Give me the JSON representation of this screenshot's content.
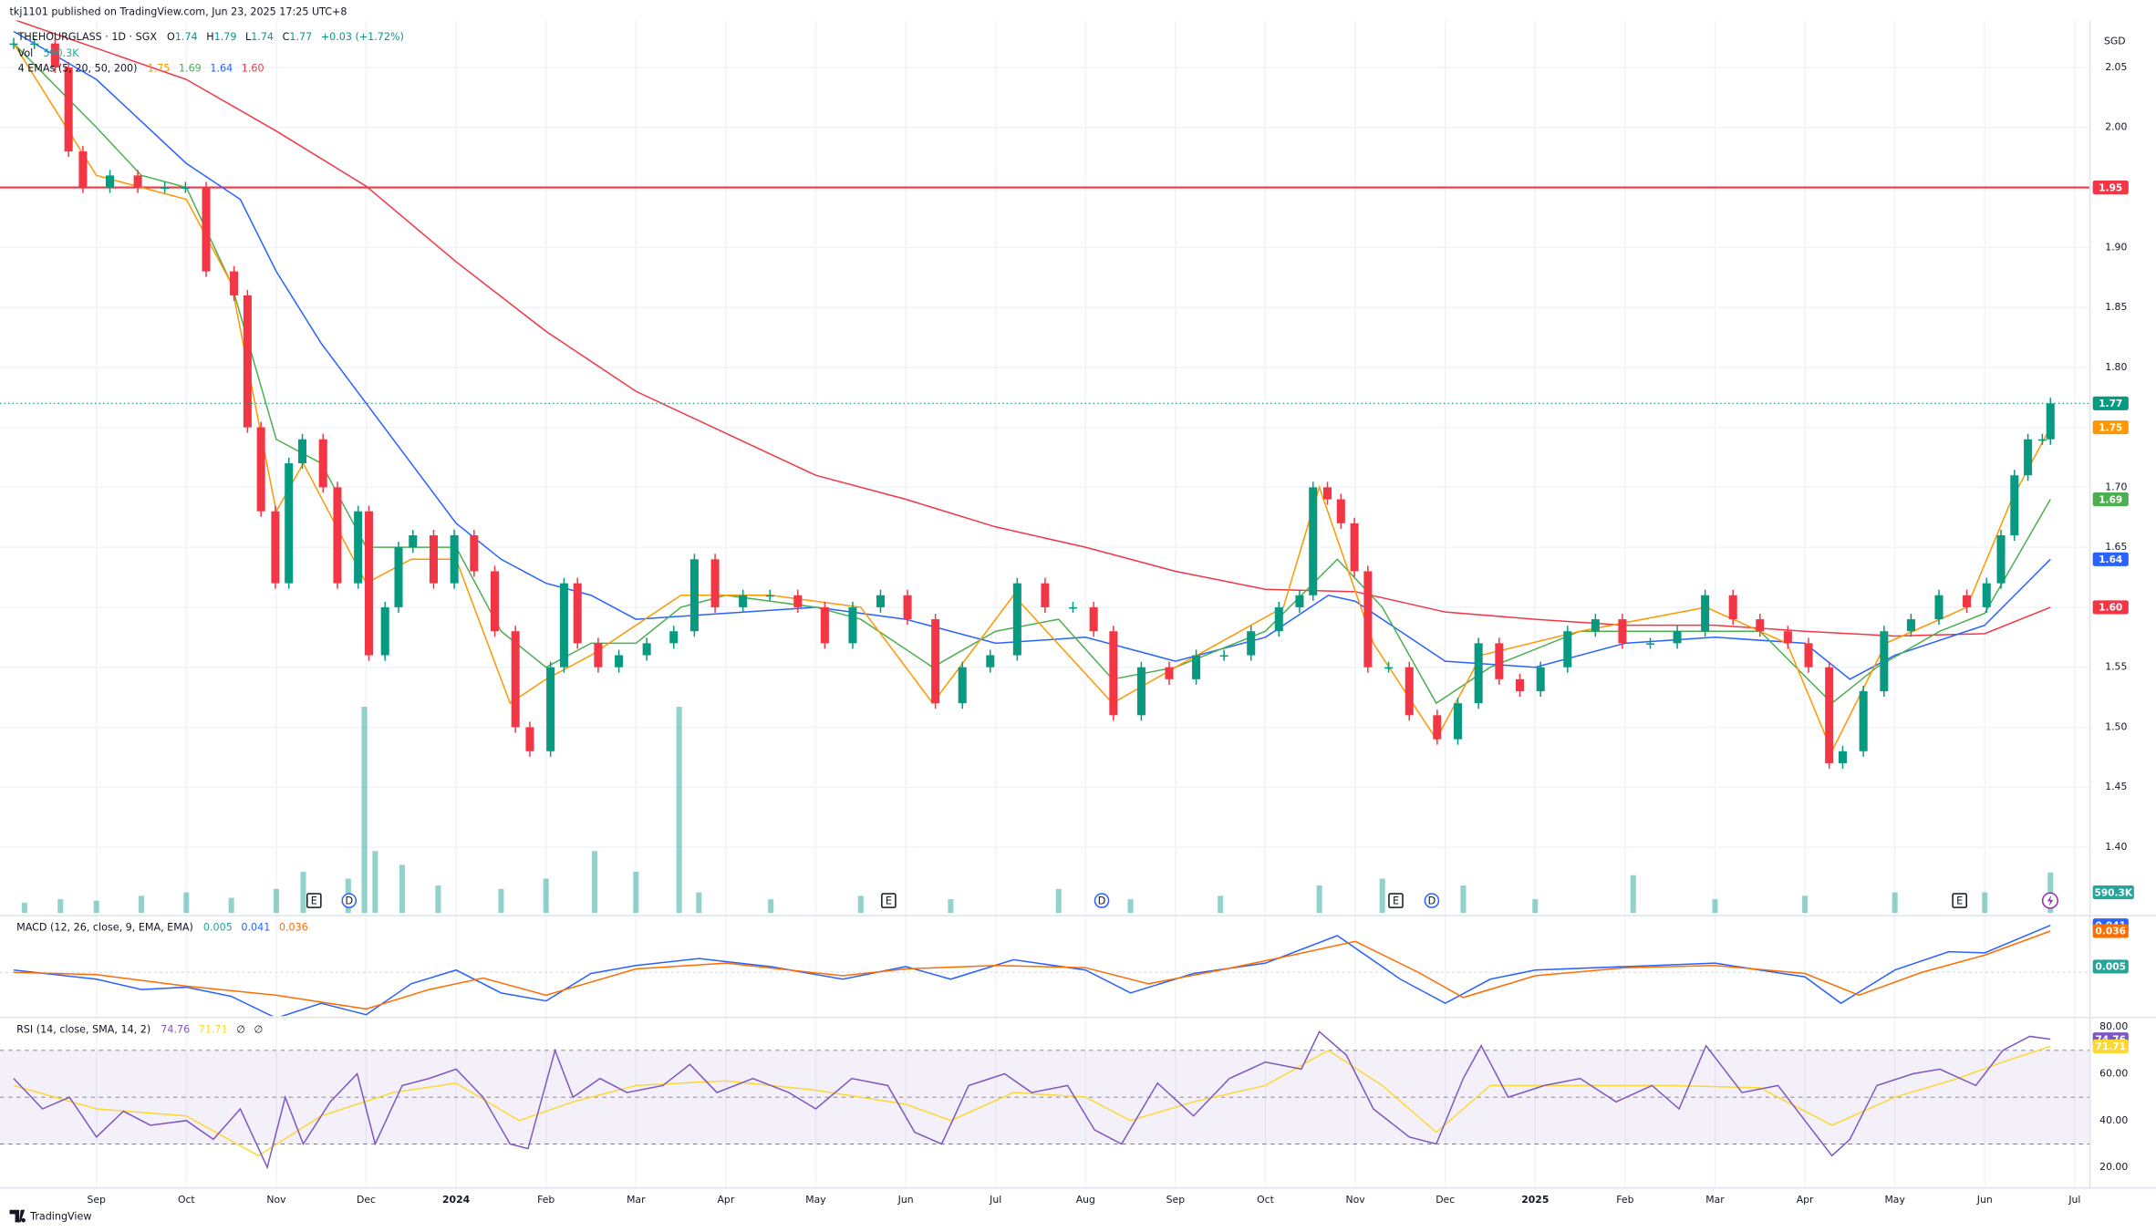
{
  "header": {
    "published": "tkj1101 published on TradingView.com, Jun 23, 2025 17:25 UTC+8"
  },
  "footer": {
    "brand": "TradingView"
  },
  "chart_data": {
    "type": "candlestick",
    "symbol": "THEHOURGLASS · 1D · SGX",
    "ohlc": [
      {
        "key": "O",
        "value": "1.74"
      },
      {
        "key": "H",
        "value": "1.79"
      },
      {
        "key": "L",
        "value": "1.74"
      },
      {
        "key": "C",
        "value": "1.77"
      }
    ],
    "change": "+0.03 (+1.72%)",
    "currency": "SGD",
    "grid": true,
    "xlim": [
      -0.95,
      22.17
    ],
    "xticks": [
      {
        "value": 0,
        "label": "Sep"
      },
      {
        "value": 1,
        "label": "Oct"
      },
      {
        "value": 2,
        "label": "Nov"
      },
      {
        "value": 3,
        "label": "Dec"
      },
      {
        "value": 4,
        "label": "2024"
      },
      {
        "value": 5,
        "label": "Feb"
      },
      {
        "value": 6,
        "label": "Mar"
      },
      {
        "value": 7,
        "label": "Apr"
      },
      {
        "value": 8,
        "label": "May"
      },
      {
        "value": 9,
        "label": "Jun"
      },
      {
        "value": 10,
        "label": "Jul"
      },
      {
        "value": 11,
        "label": "Aug"
      },
      {
        "value": 12,
        "label": "Sep"
      },
      {
        "value": 13,
        "label": "Oct"
      },
      {
        "value": 14,
        "label": "Nov"
      },
      {
        "value": 15,
        "label": "Dec"
      },
      {
        "value": 16,
        "label": "2025"
      },
      {
        "value": 17,
        "label": "Feb"
      },
      {
        "value": 18,
        "label": "Mar"
      },
      {
        "value": 19,
        "label": "Apr"
      },
      {
        "value": 20,
        "label": "May"
      },
      {
        "value": 21,
        "label": "Jun"
      },
      {
        "value": 22,
        "label": "Jul"
      }
    ],
    "ylim": [
      1.344,
      2.089
    ],
    "yticks": [
      2.05,
      {
        "value": 2,
        "label": "2.00"
      },
      1.95,
      {
        "value": 1.9,
        "label": "1.90"
      },
      1.85,
      {
        "value": 1.8,
        "label": "1.80"
      },
      1.75,
      {
        "value": 1.7,
        "label": "1.70"
      },
      1.65,
      {
        "value": 1.6,
        "label": "1.60"
      },
      1.55,
      {
        "value": 1.5,
        "label": "1.50"
      },
      1.45,
      {
        "value": 1.4,
        "label": "1.40"
      }
    ],
    "price": {
      "up_color": "#089981",
      "down_color": "#f23645",
      "last_label": "1.77",
      "x": [
        -0.92,
        -0.69,
        -0.46,
        -0.31,
        -0.15,
        0.15,
        0.46,
        0.76,
        0.99,
        1.22,
        1.53,
        1.68,
        1.83,
        1.99,
        2.14,
        2.29,
        2.52,
        2.68,
        2.91,
        3.03,
        3.21,
        3.36,
        3.52,
        3.75,
        3.98,
        4.2,
        4.43,
        4.66,
        4.82,
        5.05,
        5.2,
        5.35,
        5.58,
        5.81,
        6.12,
        6.42,
        6.65,
        6.88,
        7.19,
        7.49,
        7.8,
        8.1,
        8.41,
        8.72,
        9.02,
        9.33,
        9.63,
        9.94,
        10.24,
        10.55,
        10.86,
        11.09,
        11.31,
        11.62,
        11.93,
        12.23,
        12.54,
        12.84,
        13.15,
        13.38,
        13.53,
        13.69,
        13.84,
        13.99,
        14.14,
        14.37,
        14.6,
        14.91,
        15.14,
        15.37,
        15.6,
        15.83,
        16.06,
        16.36,
        16.67,
        16.97,
        17.28,
        17.58,
        17.89,
        18.2,
        18.5,
        18.81,
        19.04,
        19.27,
        19.42,
        19.65,
        19.88,
        20.18,
        20.49,
        20.8,
        21.02,
        21.18,
        21.33,
        21.48,
        21.64,
        21.73
      ],
      "values": [
        2.07,
        2.07,
        2.05,
        1.98,
        1.95,
        1.96,
        1.95,
        1.95,
        1.95,
        1.88,
        1.86,
        1.75,
        1.68,
        1.62,
        1.72,
        1.74,
        1.7,
        1.62,
        1.68,
        1.56,
        1.6,
        1.65,
        1.66,
        1.62,
        1.66,
        1.63,
        1.58,
        1.5,
        1.48,
        1.55,
        1.62,
        1.57,
        1.55,
        1.56,
        1.57,
        1.58,
        1.64,
        1.6,
        1.61,
        1.61,
        1.6,
        1.57,
        1.6,
        1.61,
        1.59,
        1.52,
        1.55,
        1.56,
        1.62,
        1.6,
        1.6,
        1.58,
        1.51,
        1.55,
        1.54,
        1.56,
        1.56,
        1.58,
        1.6,
        1.61,
        1.7,
        1.69,
        1.67,
        1.63,
        1.55,
        1.55,
        1.51,
        1.49,
        1.52,
        1.57,
        1.54,
        1.53,
        1.55,
        1.58,
        1.59,
        1.57,
        1.57,
        1.58,
        1.61,
        1.59,
        1.58,
        1.57,
        1.55,
        1.47,
        1.48,
        1.53,
        1.58,
        1.59,
        1.61,
        1.6,
        1.62,
        1.66,
        1.71,
        1.74,
        1.74,
        1.77
      ]
    },
    "hline": {
      "value": 1.95,
      "label": "1.95",
      "color": "#f23645"
    },
    "emas": {
      "title": "4 EMAs (5, 20, 50, 200)",
      "series": [
        {
          "color": "#ff9800",
          "last_label": "1.75",
          "x": [
            -0.92,
            0,
            1,
            1.5,
            2,
            2.3,
            3,
            3.5,
            4,
            4.6,
            5,
            5.5,
            6.5,
            7.5,
            8.5,
            9.3,
            10.2,
            11.3,
            12,
            13.2,
            13.6,
            14.2,
            14.9,
            15.4,
            16.5,
            17.9,
            18.8,
            19.3,
            19.9,
            20.8,
            21.3,
            21.73
          ],
          "values": [
            2.07,
            1.96,
            1.94,
            1.87,
            1.68,
            1.72,
            1.62,
            1.64,
            1.64,
            1.52,
            1.54,
            1.56,
            1.61,
            1.61,
            1.6,
            1.52,
            1.61,
            1.52,
            1.55,
            1.6,
            1.7,
            1.57,
            1.49,
            1.56,
            1.58,
            1.6,
            1.57,
            1.48,
            1.57,
            1.6,
            1.69,
            1.75
          ]
        },
        {
          "color": "#4caf50",
          "last_label": "1.69",
          "x": [
            -0.92,
            0,
            0.5,
            1,
            1.5,
            2,
            2.5,
            3,
            3.5,
            4,
            4.5,
            5,
            5.5,
            6,
            6.5,
            7,
            8,
            8.5,
            9.3,
            10,
            10.7,
            11.3,
            12,
            13,
            13.8,
            14.3,
            14.9,
            15.5,
            16.5,
            17.5,
            18.5,
            19.3,
            19.8,
            20.5,
            21,
            21.73
          ],
          "values": [
            2.07,
            2.0,
            1.96,
            1.95,
            1.87,
            1.74,
            1.72,
            1.65,
            1.65,
            1.65,
            1.58,
            1.55,
            1.57,
            1.57,
            1.6,
            1.61,
            1.6,
            1.59,
            1.55,
            1.58,
            1.59,
            1.54,
            1.55,
            1.58,
            1.64,
            1.6,
            1.52,
            1.55,
            1.58,
            1.58,
            1.58,
            1.52,
            1.55,
            1.58,
            1.595,
            1.69
          ]
        },
        {
          "color": "#2962ff",
          "last_label": "1.64",
          "x": [
            -0.92,
            0,
            1,
            1.6,
            2,
            2.5,
            3,
            3.5,
            4,
            4.5,
            5,
            5.5,
            6,
            7,
            8,
            9,
            10,
            11,
            12,
            13,
            13.7,
            14,
            14.5,
            15,
            16,
            17,
            18,
            19,
            19.5,
            20,
            21,
            21.73
          ],
          "values": [
            2.08,
            2.04,
            1.97,
            1.94,
            1.88,
            1.82,
            1.77,
            1.72,
            1.67,
            1.64,
            1.62,
            1.61,
            1.59,
            1.595,
            1.6,
            1.59,
            1.57,
            1.575,
            1.555,
            1.575,
            1.61,
            1.605,
            1.58,
            1.555,
            1.55,
            1.57,
            1.575,
            1.57,
            1.54,
            1.56,
            1.585,
            1.64
          ]
        },
        {
          "color": "#f23645",
          "last_label": "1.60",
          "x": [
            -0.92,
            1,
            2,
            3,
            4,
            5,
            6,
            7,
            8,
            9,
            10,
            11,
            12,
            13,
            14,
            15,
            16,
            17,
            18,
            19,
            20,
            21,
            21.73
          ],
          "values": [
            2.09,
            2.04,
            1.997,
            1.951,
            1.888,
            1.83,
            1.78,
            1.745,
            1.71,
            1.69,
            1.667,
            1.65,
            1.63,
            1.615,
            1.613,
            1.596,
            1.59,
            1.585,
            1.585,
            1.58,
            1.576,
            1.578,
            1.6
          ]
        }
      ]
    },
    "volume": {
      "title": "Vol",
      "last_label": "590.3K",
      "color": "#26a69a",
      "vlim": [
        0,
        4000
      ],
      "x": [
        -0.8,
        -0.4,
        0,
        0.5,
        1,
        1.5,
        2,
        2.3,
        2.8,
        2.98,
        3.1,
        3.4,
        3.8,
        4.5,
        5,
        5.54,
        6,
        6.48,
        6.7,
        7.5,
        8.5,
        9.5,
        10.7,
        11.5,
        12.5,
        13.6,
        14.3,
        15.2,
        16,
        17.09,
        18,
        19,
        20,
        21,
        21.73
      ],
      "values": [
        150,
        200,
        180,
        250,
        300,
        220,
        350,
        600,
        500,
        3000,
        900,
        700,
        400,
        350,
        500,
        900,
        600,
        3000,
        300,
        200,
        250,
        200,
        350,
        200,
        250,
        400,
        500,
        400,
        200,
        550,
        200,
        250,
        300,
        300,
        590.3
      ]
    },
    "events": [
      {
        "label": "E",
        "x": 2.42
      },
      {
        "label": "D",
        "x": 2.81
      },
      {
        "label": "E",
        "x": 8.81
      },
      {
        "label": "D",
        "x": 11.18
      },
      {
        "label": "E",
        "x": 14.45
      },
      {
        "label": "D",
        "x": 14.85
      },
      {
        "label": "E",
        "x": 20.72
      }
    ],
    "macd": {
      "title": "MACD (12, 26, close, 9, EMA, EMA)",
      "ylim": [
        -0.037,
        0.047
      ],
      "histogram_label": "0.005",
      "histogram_value": 0.005,
      "histogram_color": "#26a69a",
      "series": [
        {
          "color": "#2962ff",
          "last_label": "0.041",
          "x": [
            -0.92,
            0,
            0.5,
            1,
            1.5,
            2,
            2.5,
            3,
            3.5,
            4,
            4.5,
            5,
            5.5,
            6,
            6.7,
            7.5,
            8.3,
            9,
            9.5,
            10.2,
            11,
            11.5,
            12.2,
            13,
            13.8,
            14.5,
            15,
            15.5,
            16,
            17,
            18,
            19,
            19.4,
            20,
            20.6,
            21,
            21.73
          ],
          "values": [
            0.002,
            -0.006,
            -0.015,
            -0.013,
            -0.021,
            -0.04,
            -0.027,
            -0.037,
            -0.01,
            0.002,
            -0.018,
            -0.025,
            -0.001,
            0.006,
            0.012,
            0.005,
            -0.006,
            0.005,
            -0.006,
            0.011,
            0.002,
            -0.018,
            -0.001,
            0.008,
            0.032,
            -0.006,
            -0.027,
            -0.006,
            0.002,
            0.005,
            0.008,
            -0.004,
            -0.027,
            0.002,
            0.018,
            0.017,
            0.041
          ]
        },
        {
          "color": "#ff6d00",
          "last_label": "0.036",
          "x": [
            -0.92,
            0,
            1,
            2,
            3,
            3.7,
            4.3,
            5,
            6,
            7,
            8.3,
            9,
            10,
            11,
            11.7,
            12.5,
            13.3,
            14,
            14.7,
            15.2,
            16,
            17,
            18,
            19,
            19.6,
            20.3,
            21,
            21.73
          ],
          "values": [
            0,
            -0.002,
            -0.012,
            -0.02,
            -0.032,
            -0.015,
            -0.005,
            -0.02,
            0.003,
            0.008,
            -0.003,
            0.003,
            0.006,
            0.004,
            -0.01,
            0.002,
            0.015,
            0.027,
            0,
            -0.022,
            -0.003,
            0.004,
            0.006,
            -0.001,
            -0.02,
            0,
            0.015,
            0.036
          ]
        }
      ]
    },
    "rsi": {
      "title": "RSI (14, close, SMA, 14, 2)",
      "ylim": [
        12.4,
        82.9
      ],
      "yticks": [
        {
          "value": 80,
          "label": "80.00"
        },
        {
          "value": 60,
          "label": "60.00"
        },
        {
          "value": 40,
          "label": "40.00"
        },
        {
          "value": 20,
          "label": "20.00"
        }
      ],
      "bands": [
        70,
        50,
        30
      ],
      "legend_extra": [
        "∅",
        "∅"
      ],
      "series": [
        {
          "color": "#7e57c2",
          "last_label": "74.76",
          "x": [
            -0.92,
            -0.6,
            -0.3,
            0,
            0.3,
            0.6,
            1,
            1.3,
            1.6,
            1.9,
            2.1,
            2.3,
            2.6,
            2.9,
            3.1,
            3.4,
            3.7,
            4,
            4.3,
            4.6,
            4.8,
            5.1,
            5.3,
            5.6,
            5.9,
            6.3,
            6.6,
            6.9,
            7.3,
            7.7,
            8,
            8.4,
            8.8,
            9.1,
            9.4,
            9.7,
            10.1,
            10.4,
            10.8,
            11.1,
            11.4,
            11.8,
            12.2,
            12.6,
            13,
            13.4,
            13.6,
            13.9,
            14.2,
            14.6,
            14.9,
            15.2,
            15.4,
            15.7,
            16.1,
            16.5,
            16.9,
            17.3,
            17.6,
            17.9,
            18.3,
            18.7,
            19,
            19.3,
            19.5,
            19.8,
            20.2,
            20.5,
            20.9,
            21.2,
            21.5,
            21.73
          ],
          "values": [
            58,
            45,
            50,
            33,
            44,
            38,
            40,
            32,
            45,
            20,
            50,
            30,
            48,
            60,
            30,
            55,
            58,
            62,
            50,
            30,
            28,
            70,
            50,
            58,
            52,
            55,
            64,
            52,
            58,
            52,
            45,
            58,
            55,
            35,
            30,
            55,
            60,
            52,
            55,
            36,
            30,
            56,
            42,
            58,
            65,
            62,
            78,
            68,
            45,
            33,
            30,
            58,
            72,
            50,
            55,
            58,
            48,
            55,
            45,
            72,
            52,
            55,
            40,
            25,
            32,
            55,
            60,
            62,
            55,
            70,
            76,
            74.76
          ]
        },
        {
          "color": "#fdd835",
          "last_label": "71.71",
          "x": [
            -0.92,
            0,
            1,
            1.8,
            2.5,
            3.3,
            4,
            4.7,
            5.3,
            6,
            7,
            8,
            9,
            9.5,
            10.2,
            11,
            11.5,
            12.2,
            13,
            13.7,
            14.3,
            14.9,
            15.5,
            16.5,
            17.5,
            18.5,
            19.3,
            20,
            20.7,
            21.2,
            21.73
          ],
          "values": [
            55,
            45,
            42,
            25,
            42,
            52,
            56,
            40,
            48,
            55,
            57,
            53,
            47,
            40,
            52,
            50,
            40,
            48,
            55,
            70,
            55,
            35,
            55,
            55,
            55,
            54,
            38,
            50,
            58,
            65,
            71.71
          ]
        }
      ]
    }
  }
}
